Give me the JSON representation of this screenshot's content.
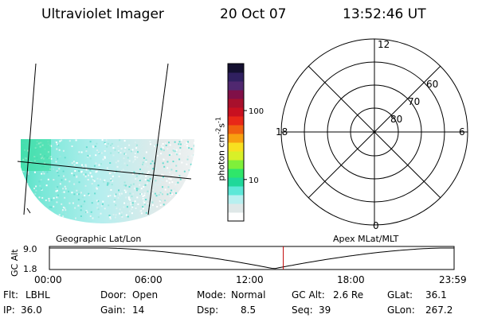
{
  "header": {
    "instrument": "Ultraviolet Imager",
    "date": "20 Oct 07",
    "time": "13:52:46 UT"
  },
  "map_labels": {
    "left": "Geographic Lat/Lon",
    "right": "Apex MLat/MLT"
  },
  "colorbar": {
    "unit_label": "photon cm",
    "unit_exp1": "-2",
    "unit_mid": "s",
    "unit_exp2": "-1",
    "ticks": [
      {
        "label": "100",
        "value": 100
      },
      {
        "label": "10",
        "value": 10
      }
    ],
    "colors": [
      "#ffffff",
      "#dfe8e8",
      "#b8f0f0",
      "#5de8d8",
      "#1fd89a",
      "#2fe66a",
      "#7ff03a",
      "#d8f028",
      "#f8e020",
      "#f8a010",
      "#f06010",
      "#e82818",
      "#c81020",
      "#a8102c",
      "#801048",
      "#502870",
      "#302060",
      "#141030"
    ]
  },
  "polar": {
    "mlt_labels": {
      "top": "12",
      "left": "18",
      "right": "6",
      "bottom": "0"
    },
    "lat_labels": [
      "60",
      "70",
      "80"
    ]
  },
  "altitude": {
    "axis_label": "GC Alt",
    "ticks": [
      "9.0",
      "1.8"
    ],
    "time_ticks": [
      "00:00",
      "06:00",
      "12:00",
      "18:00",
      "23:59"
    ],
    "current_time_fraction": 0.578,
    "marker_color": "#c00000"
  },
  "info": {
    "flt_label": "Flt:",
    "flt_value": "LBHL",
    "door_label": "Door:",
    "door_value": "Open",
    "mode_label": "Mode:",
    "mode_value": "Normal",
    "gcalt_label": "GC Alt:",
    "gcalt_value": "2.6 Re",
    "glat_label": "GLat:",
    "glat_value": "36.1",
    "ip_label": "IP:",
    "ip_value": "36.0",
    "gain_label": "Gain:",
    "gain_value": "14",
    "dsp_label": "Dsp:",
    "dsp_value": "8.5",
    "seq_label": "Seq:",
    "seq_value": "39",
    "glon_label": "GLon:",
    "glon_value": "267.2"
  }
}
